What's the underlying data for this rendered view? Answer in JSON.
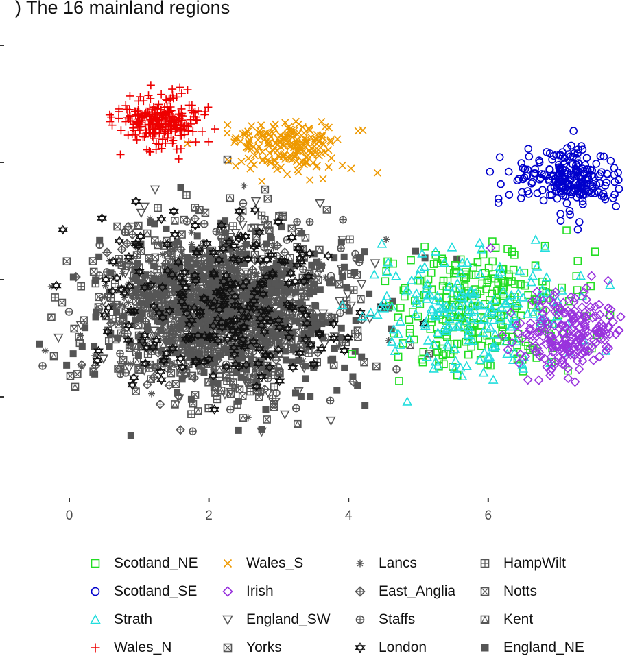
{
  "chart_data": {
    "type": "scatter",
    "title": ") The 16 mainland regions",
    "xlabel": "",
    "ylabel": "",
    "xlim": [
      -0.5,
      8.1
    ],
    "x_ticks": [
      "0",
      "2",
      "4",
      "6"
    ],
    "x_tick_values": [
      0,
      2,
      4,
      6
    ],
    "y_ticks_count": 4,
    "grid": false,
    "legend_position": "bottom",
    "series": [
      {
        "name": "Scotland_NE",
        "color": "#22dd22",
        "marker": "square-open",
        "center": [
          5.9,
          3.6
        ],
        "spread": [
          1.3,
          1.2
        ],
        "count": 260
      },
      {
        "name": "Scotland_SE",
        "color": "#0000cc",
        "marker": "circle-open",
        "center": [
          7.2,
          6.2
        ],
        "spread": [
          0.7,
          0.6
        ],
        "count": 240
      },
      {
        "name": "Strath",
        "color": "#22dddd",
        "marker": "triangle-open",
        "center": [
          5.8,
          3.4
        ],
        "spread": [
          1.4,
          1.1
        ],
        "count": 200
      },
      {
        "name": "Wales_N",
        "color": "#ee0000",
        "marker": "plus",
        "center": [
          1.3,
          7.4
        ],
        "spread": [
          0.55,
          0.5
        ],
        "count": 260
      },
      {
        "name": "Wales_S",
        "color": "#ee9900",
        "marker": "x",
        "center": [
          3.1,
          6.9
        ],
        "spread": [
          0.7,
          0.55
        ],
        "count": 200
      },
      {
        "name": "Irish",
        "color": "#9933dd",
        "marker": "diamond-open",
        "center": [
          7.2,
          3.0
        ],
        "spread": [
          0.8,
          0.8
        ],
        "count": 220
      },
      {
        "name": "England_SW",
        "color": "#555555",
        "marker": "triangle-down-open",
        "center": [
          2.2,
          3.4
        ],
        "spread": [
          1.6,
          1.6
        ],
        "count": 150
      },
      {
        "name": "Yorks",
        "color": "#555555",
        "marker": "square-x",
        "center": [
          2.2,
          3.4
        ],
        "spread": [
          1.6,
          1.6
        ],
        "count": 150
      },
      {
        "name": "Lancs",
        "color": "#555555",
        "marker": "asterisk",
        "center": [
          2.0,
          3.6
        ],
        "spread": [
          1.6,
          1.5
        ],
        "count": 150
      },
      {
        "name": "East_Anglia",
        "color": "#555555",
        "marker": "diamond-plus",
        "center": [
          2.0,
          3.4
        ],
        "spread": [
          1.6,
          1.6
        ],
        "count": 150
      },
      {
        "name": "Staffs",
        "color": "#555555",
        "marker": "circle-plus",
        "center": [
          2.3,
          3.5
        ],
        "spread": [
          1.6,
          1.6
        ],
        "count": 150
      },
      {
        "name": "London",
        "color": "#111111",
        "marker": "star-of-david",
        "center": [
          2.4,
          3.5
        ],
        "spread": [
          1.7,
          1.6
        ],
        "count": 240
      },
      {
        "name": "HampWilt",
        "color": "#555555",
        "marker": "square-plus",
        "center": [
          2.2,
          3.5
        ],
        "spread": [
          1.6,
          1.6
        ],
        "count": 150
      },
      {
        "name": "Notts",
        "color": "#555555",
        "marker": "square-x-small",
        "center": [
          2.2,
          3.4
        ],
        "spread": [
          1.6,
          1.6
        ],
        "count": 150
      },
      {
        "name": "Kent",
        "color": "#555555",
        "marker": "square-triangle",
        "center": [
          2.3,
          3.4
        ],
        "spread": [
          1.6,
          1.6
        ],
        "count": 150
      },
      {
        "name": "England_NE",
        "color": "#555555",
        "marker": "square-filled",
        "center": [
          2.3,
          3.5
        ],
        "spread": [
          1.7,
          1.6
        ],
        "count": 380
      }
    ]
  }
}
